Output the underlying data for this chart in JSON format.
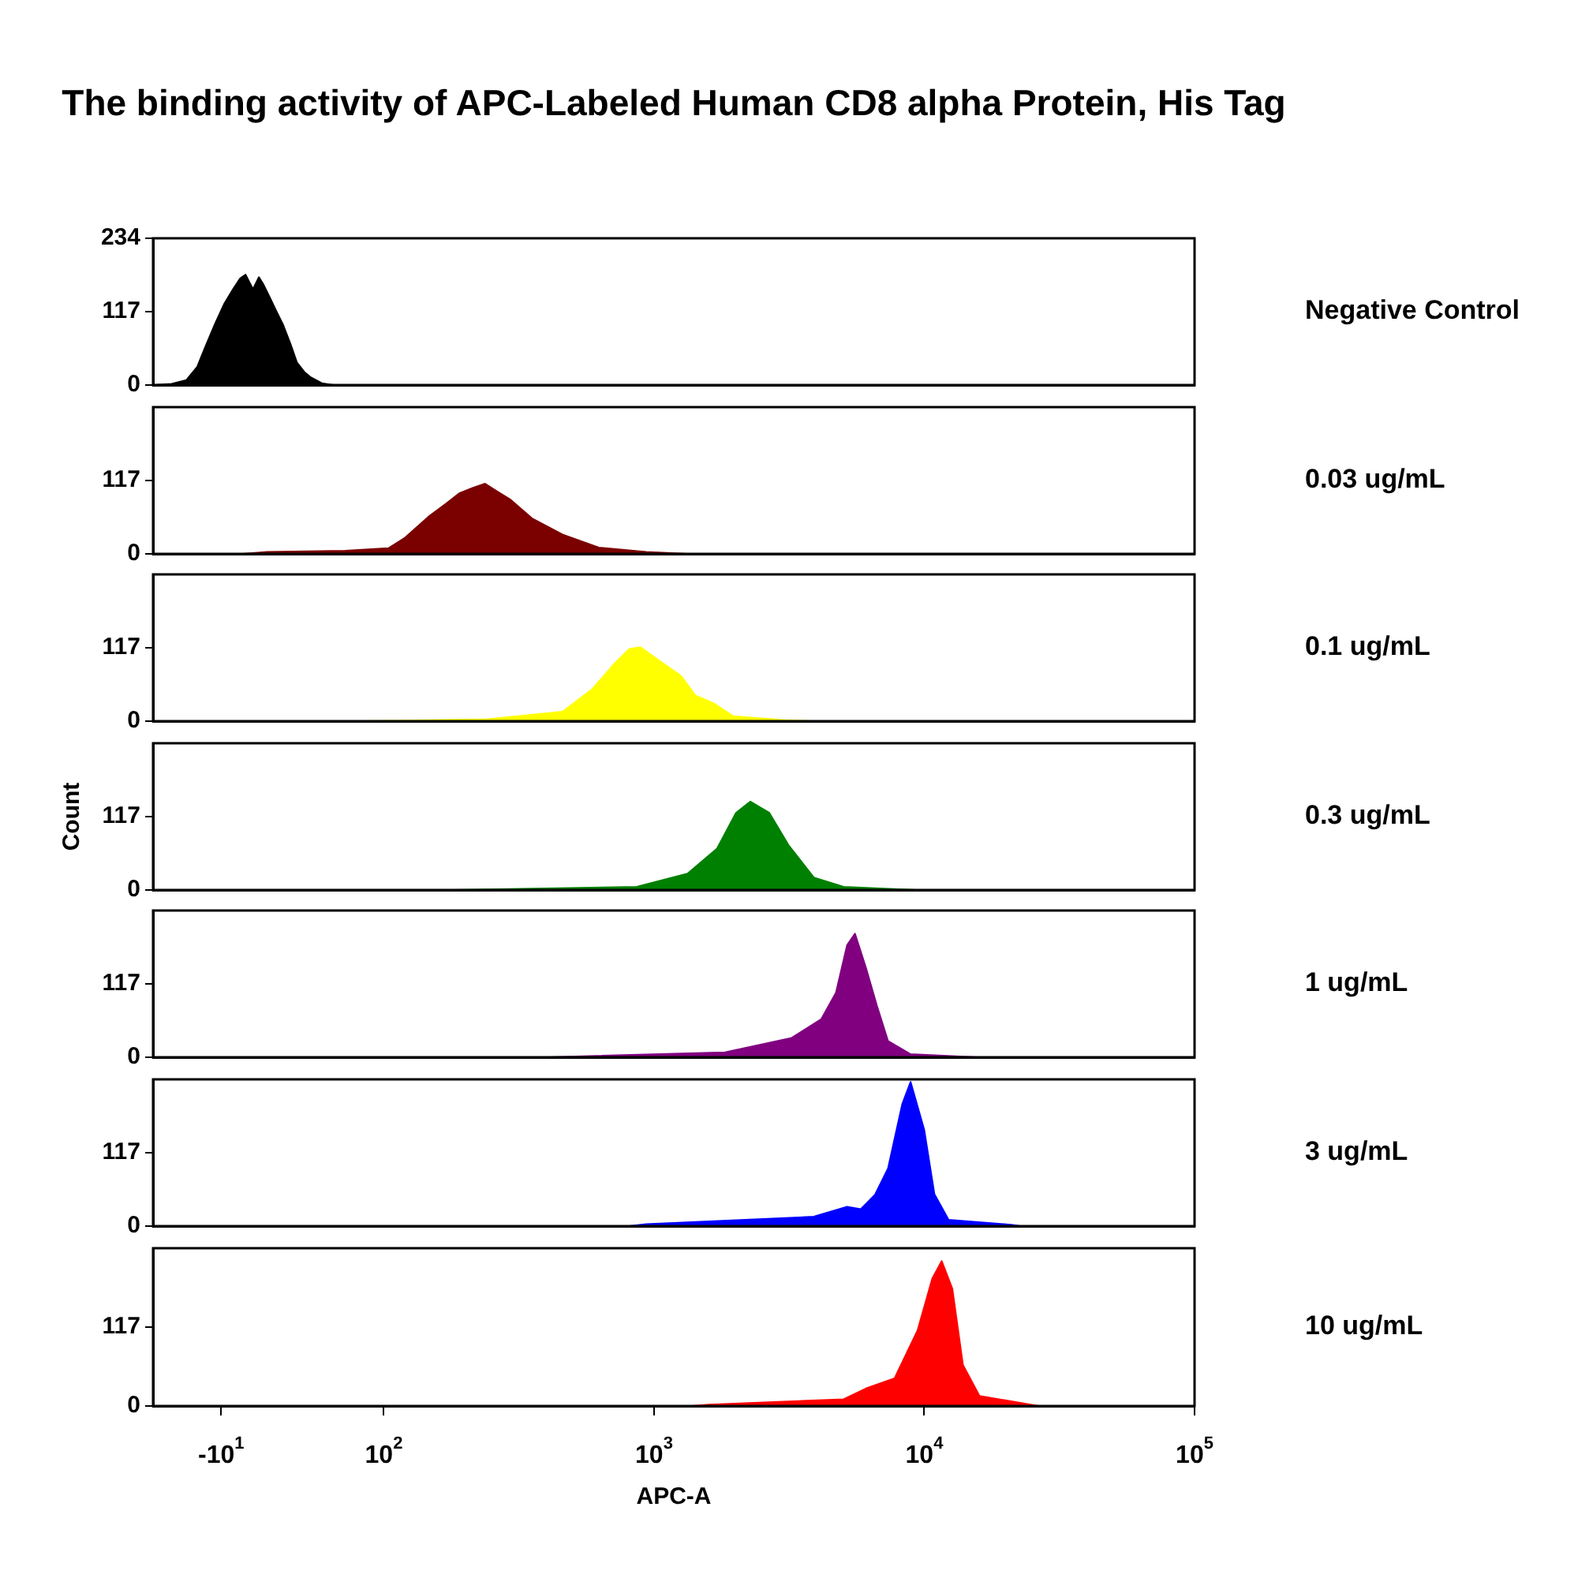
{
  "chart_data": [
    {
      "type": "area",
      "title": "The binding activity of APC-Labeled Human CD8 alpha Protein, His Tag",
      "color": "#000000",
      "annotations": [
        "Negative Control"
      ],
      "log": "x",
      "tick_labels": "y",
      "xlim": [
        14,
        100000
      ],
      "ylim": [
        0,
        234
      ],
      "yticks": [
        0,
        117,
        234
      ],
      "x": [
        14,
        16.4,
        18.6,
        20.4,
        21.8,
        23.7,
        25.7,
        27.7,
        29.4,
        30.8,
        32.8,
        34.5,
        35.9,
        38,
        40,
        42.3,
        45.2,
        47.7,
        51,
        53.8,
        59,
        65,
        100000
      ],
      "values": [
        0,
        2,
        8,
        29,
        60,
        97,
        130,
        153,
        170,
        176,
        153,
        172,
        160,
        138,
        118,
        97,
        65,
        36,
        20,
        12,
        3,
        0,
        0
      ]
    },
    {
      "type": "area",
      "color": "#7b0000",
      "annotations": [
        "0.03 ug/mL"
      ],
      "log": "x",
      "tick_labels": "y",
      "xlim": [
        14,
        100000
      ],
      "ylim": [
        0,
        234
      ],
      "yticks": [
        0,
        117
      ],
      "x": [
        14,
        30,
        37,
        72,
        104,
        120,
        148,
        170,
        191,
        213,
        237,
        262,
        293,
        355,
        458,
        624,
        935,
        1330,
        100000
      ],
      "values": [
        0,
        0,
        3,
        5,
        9,
        26,
        61,
        80,
        97,
        105,
        112,
        100,
        87,
        56,
        31,
        10,
        3,
        0,
        0
      ]
    },
    {
      "type": "area",
      "color": "#ffff00",
      "annotations": [
        "0.1 ug/mL"
      ],
      "log": "x",
      "tick_labels": "y",
      "xlim": [
        14,
        100000
      ],
      "ylim": [
        0,
        234
      ],
      "yticks": [
        0,
        117
      ],
      "x": [
        14,
        83,
        243,
        458,
        590,
        714,
        810,
        890,
        1040,
        1260,
        1420,
        1670,
        1960,
        2990,
        3900,
        100000
      ],
      "values": [
        0,
        0,
        3,
        15,
        51,
        92,
        115,
        118,
        97,
        72,
        41,
        28,
        8,
        2,
        0,
        0
      ]
    },
    {
      "type": "area",
      "color": "#008000",
      "annotations": [
        "0.3 ug/mL"
      ],
      "ylabel": "Count",
      "log": "x",
      "tick_labels": "y",
      "xlim": [
        14,
        100000
      ],
      "ylim": [
        0,
        234
      ],
      "yticks": [
        0,
        117
      ],
      "x": [
        14,
        178,
        862,
        1330,
        1710,
        2010,
        2270,
        2670,
        3140,
        3900,
        5030,
        9350,
        100000
      ],
      "values": [
        0,
        0,
        5,
        26,
        66,
        123,
        141,
        123,
        72,
        20,
        5,
        0,
        0
      ]
    },
    {
      "type": "area",
      "color": "#800080",
      "annotations": [
        "1 ug/mL"
      ],
      "log": "x",
      "tick_labels": "y",
      "xlim": [
        14,
        100000
      ],
      "ylim": [
        0,
        234
      ],
      "yticks": [
        0,
        117
      ],
      "x": [
        14,
        406,
        1830,
        3230,
        4160,
        4710,
        5180,
        5540,
        6080,
        6680,
        7340,
        8900,
        15600,
        100000
      ],
      "values": [
        0,
        0,
        8,
        31,
        61,
        103,
        179,
        197,
        143,
        82,
        26,
        5,
        0,
        0
      ]
    },
    {
      "type": "area",
      "color": "#0000ff",
      "annotations": [
        "3 ug/mL"
      ],
      "log": "x",
      "tick_labels": "y",
      "xlim": [
        14,
        100000
      ],
      "ylim": [
        0,
        234
      ],
      "yticks": [
        0,
        117
      ],
      "x": [
        14,
        810,
        935,
        3900,
        5180,
        5820,
        6570,
        7340,
        8290,
        8900,
        10000,
        10900,
        12300,
        21200,
        22600,
        100000
      ],
      "values": [
        0,
        0,
        3,
        15,
        31,
        27,
        50,
        92,
        195,
        230,
        153,
        51,
        10,
        2,
        0,
        0
      ]
    },
    {
      "type": "area",
      "color": "#ff0000",
      "annotations": [
        "10 ug/mL"
      ],
      "xlabel": "APC-A",
      "log": "x",
      "xlim": [
        14,
        100000
      ],
      "ylim": [
        0,
        234
      ],
      "yticks": [
        0,
        117
      ],
      "xticks": [
        {
          "value": 25,
          "label": "-10$^{1}$"
        },
        {
          "value": 100,
          "label": "10$^{2}$"
        },
        {
          "value": 1000,
          "label": "10$^{3}$"
        },
        {
          "value": 10000,
          "label": "10$^{4}$"
        },
        {
          "value": 100000,
          "label": "10$^{5}$"
        }
      ],
      "x": [
        14,
        1380,
        1600,
        5030,
        6080,
        7760,
        9440,
        10700,
        11600,
        12700,
        13900,
        16000,
        26500,
        100000
      ],
      "values": [
        0,
        0,
        2,
        10,
        26,
        41,
        112,
        189,
        215,
        174,
        61,
        15,
        0,
        0
      ]
    }
  ]
}
